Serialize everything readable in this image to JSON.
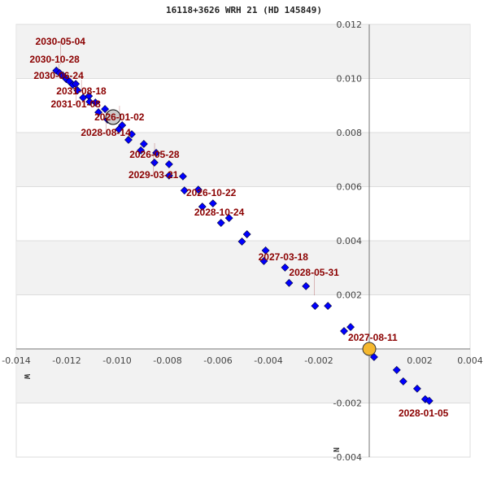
{
  "title": "16118+3626 WRH  21 (HD 145849)",
  "chart_data": {
    "type": "scatter",
    "title": "16118+3626 WRH  21 (HD 145849)",
    "xlim": [
      -0.014,
      0.004
    ],
    "ylim": [
      -0.004,
      0.012
    ],
    "x_reversed": false,
    "grid": "horizontal bands",
    "x_ticks": [
      -0.014,
      -0.012,
      -0.01,
      -0.008,
      -0.006,
      -0.004,
      -0.002,
      0,
      0.002,
      0.004
    ],
    "x_tick_labels": [
      "-0.014",
      "-0.012",
      "-0.010",
      "-0.008",
      "-0.006",
      "-0.004",
      "-0.002",
      "0",
      "0.002",
      "0.004"
    ],
    "y_ticks": [
      0.012,
      0.01,
      0.008,
      0.006,
      0.004,
      0.002,
      -0.002,
      -0.004
    ],
    "y_tick_labels": [
      "0.012",
      "0.010",
      "0.008",
      "0.006",
      "0.004",
      "0.002",
      "-0.002",
      "-0.004"
    ],
    "direction_labels": {
      "west": "W",
      "north": "N"
    },
    "colors": {
      "points": "#0000ff",
      "labels": "#8b0000",
      "primary": "#f5b82e",
      "reference": "#cccccc",
      "band": "#f2f2f2"
    },
    "primary_star": {
      "x": 0,
      "y": 0
    },
    "reference_point": {
      "x": -0.01016,
      "y": 0.00857
    },
    "points": [
      [
        -0.01241,
        0.01029
      ],
      [
        -0.01228,
        0.0102
      ],
      [
        -0.01215,
        0.01011
      ],
      [
        -0.01202,
        0.00998
      ],
      [
        -0.01189,
        0.00989
      ],
      [
        -0.01176,
        0.00977
      ],
      [
        -0.01164,
        0.0098
      ],
      [
        -0.01157,
        0.00956
      ],
      [
        -0.01135,
        0.00929
      ],
      [
        -0.01112,
        0.00935
      ],
      [
        -0.01109,
        0.00914
      ],
      [
        -0.01086,
        0.00911
      ],
      [
        -0.01074,
        0.00875
      ],
      [
        -0.01048,
        0.00887
      ],
      [
        -0.01038,
        0.00848
      ],
      [
        -0.0098,
        0.00827
      ],
      [
        -0.00993,
        0.00812
      ],
      [
        -0.00955,
        0.00773
      ],
      [
        -0.00942,
        0.00794
      ],
      [
        -0.00906,
        0.00734
      ],
      [
        -0.00894,
        0.00758
      ],
      [
        -0.00852,
        0.00689
      ],
      [
        -0.00845,
        0.00725
      ],
      [
        -0.00794,
        0.00641
      ],
      [
        -0.00794,
        0.00683
      ],
      [
        -0.00739,
        0.00638
      ],
      [
        -0.00733,
        0.00586
      ],
      [
        -0.00678,
        0.00589
      ],
      [
        -0.00662,
        0.00526
      ],
      [
        -0.0062,
        0.00538
      ],
      [
        -0.00588,
        0.00466
      ],
      [
        -0.00556,
        0.00484
      ],
      [
        -0.00505,
        0.00397
      ],
      [
        -0.00485,
        0.00424
      ],
      [
        -0.00418,
        0.00325
      ],
      [
        -0.00411,
        0.00364
      ],
      [
        -0.00334,
        0.00301
      ],
      [
        -0.00318,
        0.00244
      ],
      [
        -0.00251,
        0.00232
      ],
      [
        -0.00215,
        0.00159
      ],
      [
        -0.00164,
        0.00159
      ],
      [
        -0.001,
        0.00066
      ],
      [
        -0.00074,
        0.00081
      ],
      [
        0.00019,
        -0.0003
      ],
      [
        0.00109,
        -0.00078
      ],
      [
        0.00135,
        -0.0012
      ],
      [
        0.0019,
        -0.00147
      ],
      [
        0.00222,
        -0.00186
      ],
      [
        0.00238,
        -0.00192
      ]
    ],
    "annotations": [
      {
        "text": "2030-10-28",
        "x": -0.01347,
        "y": 0.01059
      },
      {
        "text": "2030-06-24",
        "x": -0.01331,
        "y": 0.01041
      },
      {
        "text": "2030-05-04",
        "x": -0.01324,
        "y": 0.01041
      },
      {
        "text": "2031-08-18",
        "x": -0.01241,
        "y": 0.00983
      },
      {
        "text": "2031-01-08",
        "x": -0.01263,
        "y": 0.00977
      },
      {
        "text": "2026-01-02",
        "x": -0.0109,
        "y": 0.00887
      },
      {
        "text": "2028-08-14",
        "x": -0.01144,
        "y": 0.00872
      },
      {
        "text": "2026-05-28",
        "x": -0.00951,
        "y": 0.00749
      },
      {
        "text": "2029-03-21",
        "x": -0.00955,
        "y": 0.00716
      },
      {
        "text": "2026-10-22",
        "x": -0.00726,
        "y": 0.00565
      },
      {
        "text": "2028-10-24",
        "x": -0.00694,
        "y": 0.00493
      },
      {
        "text": "2027-03-18",
        "x": -0.0044,
        "y": 0.00328
      },
      {
        "text": "2028-05-31",
        "x": -0.00318,
        "y": 0.00186
      },
      {
        "text": "2027-08-11",
        "x": -0.00084,
        "y": 0.0003
      },
      {
        "text": "2028-01-05",
        "x": 0.00116,
        "y": -0.0025
      }
    ]
  }
}
